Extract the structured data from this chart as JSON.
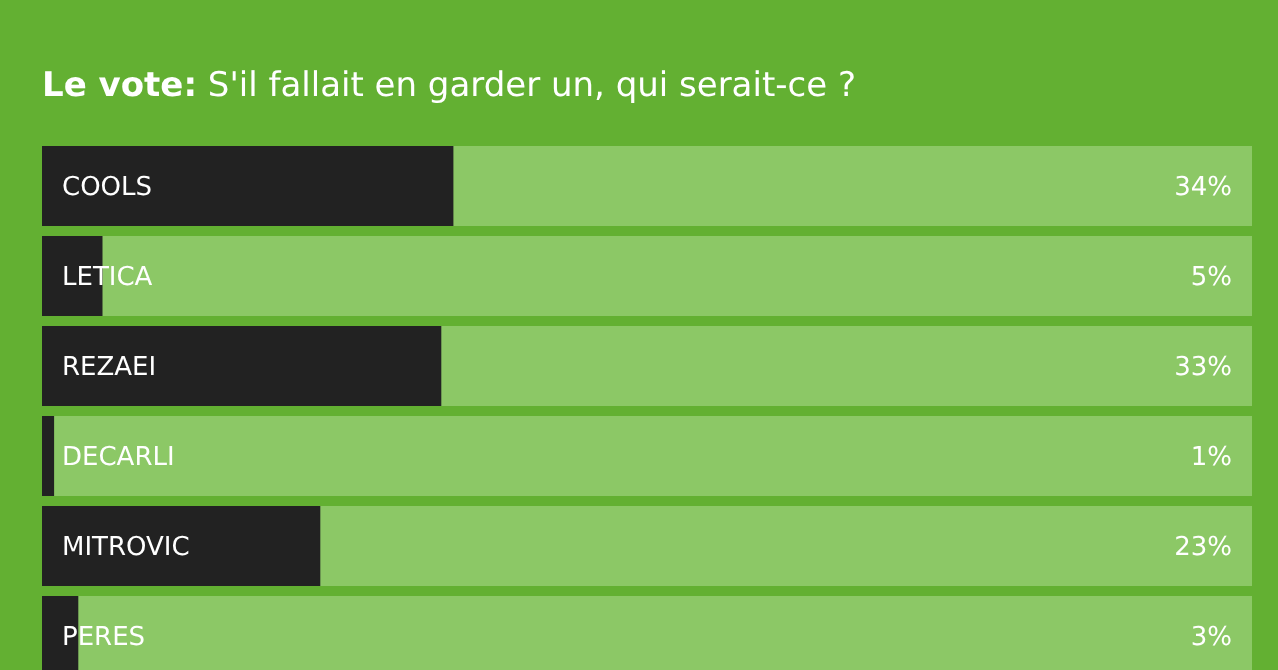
{
  "chart_data": {
    "type": "bar",
    "orientation": "horizontal",
    "title": "Le vote: S'il fallait en garder un, qui serait-ce ?",
    "categories": [
      "COOLS",
      "LETICA",
      "REZAEI",
      "DECARLI",
      "MITROVIC",
      "PERES"
    ],
    "values": [
      34,
      5,
      33,
      1,
      23,
      3
    ],
    "value_labels": [
      "34%",
      "5%",
      "33%",
      "1%",
      "23%",
      "3%"
    ],
    "color": "#222222",
    "xlim": [
      0,
      100
    ]
  }
}
